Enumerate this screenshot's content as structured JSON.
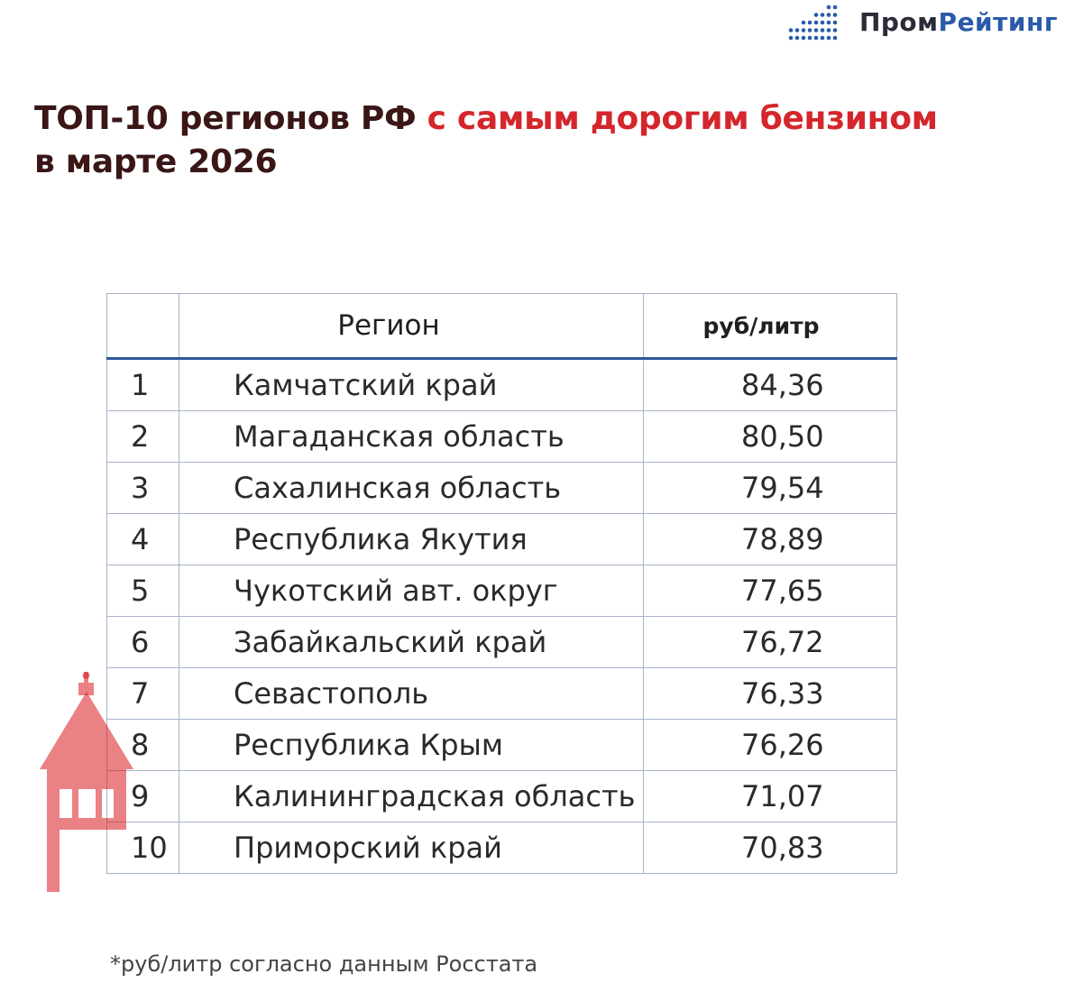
{
  "logo": {
    "brand_part1": "Пром",
    "brand_part2": "Рейтинг",
    "mark_color": "#2a5aa8"
  },
  "title": {
    "line_plain": "ТОП-10 регионов РФ",
    "line_accent": "с самым дорогим бензином",
    "line_second": "в марте 2026"
  },
  "table": {
    "headers": {
      "rank": "",
      "region": "Регион",
      "price": "руб/литр"
    },
    "rows": [
      {
        "rank": "1",
        "region": "Камчатский край",
        "price": "84,36"
      },
      {
        "rank": "2",
        "region": "Магаданская область",
        "price": "80,50"
      },
      {
        "rank": "3",
        "region": "Сахалинская область",
        "price": "79,54"
      },
      {
        "rank": "4",
        "region": "Республика Якутия",
        "price": "78,89"
      },
      {
        "rank": "5",
        "region": "Чукотский авт. округ",
        "price": "77,65"
      },
      {
        "rank": "6",
        "region": "Забайкальский край",
        "price": "76,72"
      },
      {
        "rank": "7",
        "region": "Севастополь",
        "price": "76,33"
      },
      {
        "rank": "8",
        "region": "Республика Крым",
        "price": "76,26"
      },
      {
        "rank": "9",
        "region": "Калининградская область",
        "price": "71,07"
      },
      {
        "rank": "10",
        "region": "Приморский край",
        "price": "70,83"
      }
    ]
  },
  "footnote": "*руб/литр согласно данным Росстата",
  "colors": {
    "title_dark": "#3a1616",
    "title_accent": "#d4262c",
    "header_rule": "#2e5a9a",
    "watermark": "#d8191f"
  }
}
